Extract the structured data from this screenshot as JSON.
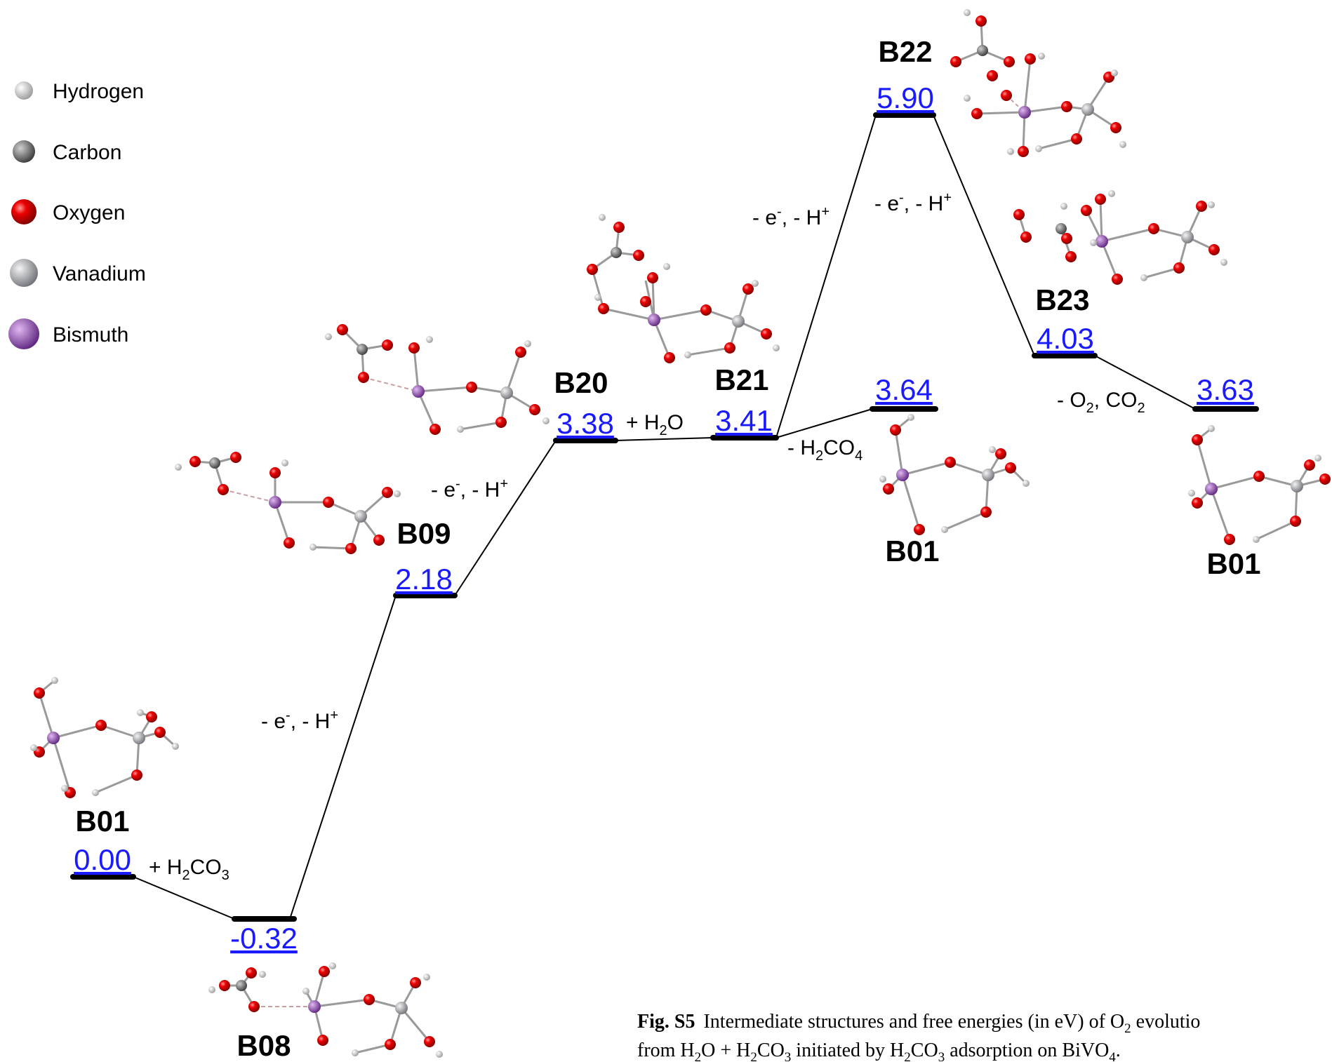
{
  "legend": {
    "items": [
      {
        "label": "Hydrogen",
        "color": "#d8d8d8"
      },
      {
        "label": "Carbon",
        "color": "#7a7a7a"
      },
      {
        "label": "Oxygen",
        "color": "#e00000"
      },
      {
        "label": "Vanadium",
        "color": "#a9abb0"
      },
      {
        "label": "Bismuth",
        "color": "#9b4fc0"
      }
    ]
  },
  "chart_data": {
    "type": "energy-level-diagram",
    "unit": "eV",
    "levels": [
      {
        "id": "B01",
        "value": "0.00"
      },
      {
        "id": "B08",
        "value": "-0.32"
      },
      {
        "id": "B09",
        "value": "2.18"
      },
      {
        "id": "B20",
        "value": "3.38"
      },
      {
        "id": "B21",
        "value": "3.41"
      },
      {
        "id": "B22",
        "value": "5.90"
      },
      {
        "id": "B23",
        "value": "4.03"
      },
      {
        "id": "B01",
        "value": "3.64"
      },
      {
        "id": "B01",
        "value": "3.63"
      }
    ],
    "steps": [
      {
        "from": "B01",
        "to": "B08",
        "base": "+ H",
        "sub1": "2",
        "mid": "CO",
        "sub2": "3"
      },
      {
        "from": "B08",
        "to": "B09",
        "base": "- e",
        "sup1": "-",
        "mid": ", - H",
        "sup2": "+"
      },
      {
        "from": "B09",
        "to": "B20",
        "base": "- e",
        "sup1": "-",
        "mid": ", - H",
        "sup2": "+"
      },
      {
        "from": "B20",
        "to": "B21",
        "base": "+ H",
        "sub1": "2",
        "mid": "O"
      },
      {
        "from": "B21",
        "to": "B01",
        "base": "- H",
        "sub1": "2",
        "mid": "CO",
        "sub2": "4"
      },
      {
        "from": "B21",
        "to": "B22",
        "base": "- e",
        "sup1": "-",
        "mid": ", - H",
        "sup2": "+"
      },
      {
        "from": "B22",
        "to": "B23",
        "base": "- e",
        "sup1": "-",
        "mid": ", - H",
        "sup2": "+"
      },
      {
        "from": "B23",
        "to": "B01",
        "base": "- O",
        "sub1": "2",
        "mid": ", CO",
        "sub2": "2"
      }
    ]
  },
  "caption": {
    "fig_label": "Fig. S5",
    "line1_text": "Intermediate structures and free energies (in eV) of O",
    "line1_sub": "2",
    "line1_tail": " evolutio",
    "line2_parts": [
      {
        "t": "from H"
      },
      {
        "s": "2"
      },
      {
        "t": "O + H"
      },
      {
        "s": "2"
      },
      {
        "t": "CO"
      },
      {
        "s": "3"
      },
      {
        "t": " initiated by H"
      },
      {
        "s": "2"
      },
      {
        "t": "CO"
      },
      {
        "s": "3"
      },
      {
        "t": " adsorption on BiVO"
      },
      {
        "s": "4"
      },
      {
        "t": "."
      }
    ]
  },
  "colors": {
    "hydrogen": "#d8d8d8",
    "carbon": "#7a7a7a",
    "oxygen": "#e00000",
    "vanadium": "#a9abb0",
    "bismuth": "#9b4fc0",
    "value_text": "#1a1aff"
  }
}
